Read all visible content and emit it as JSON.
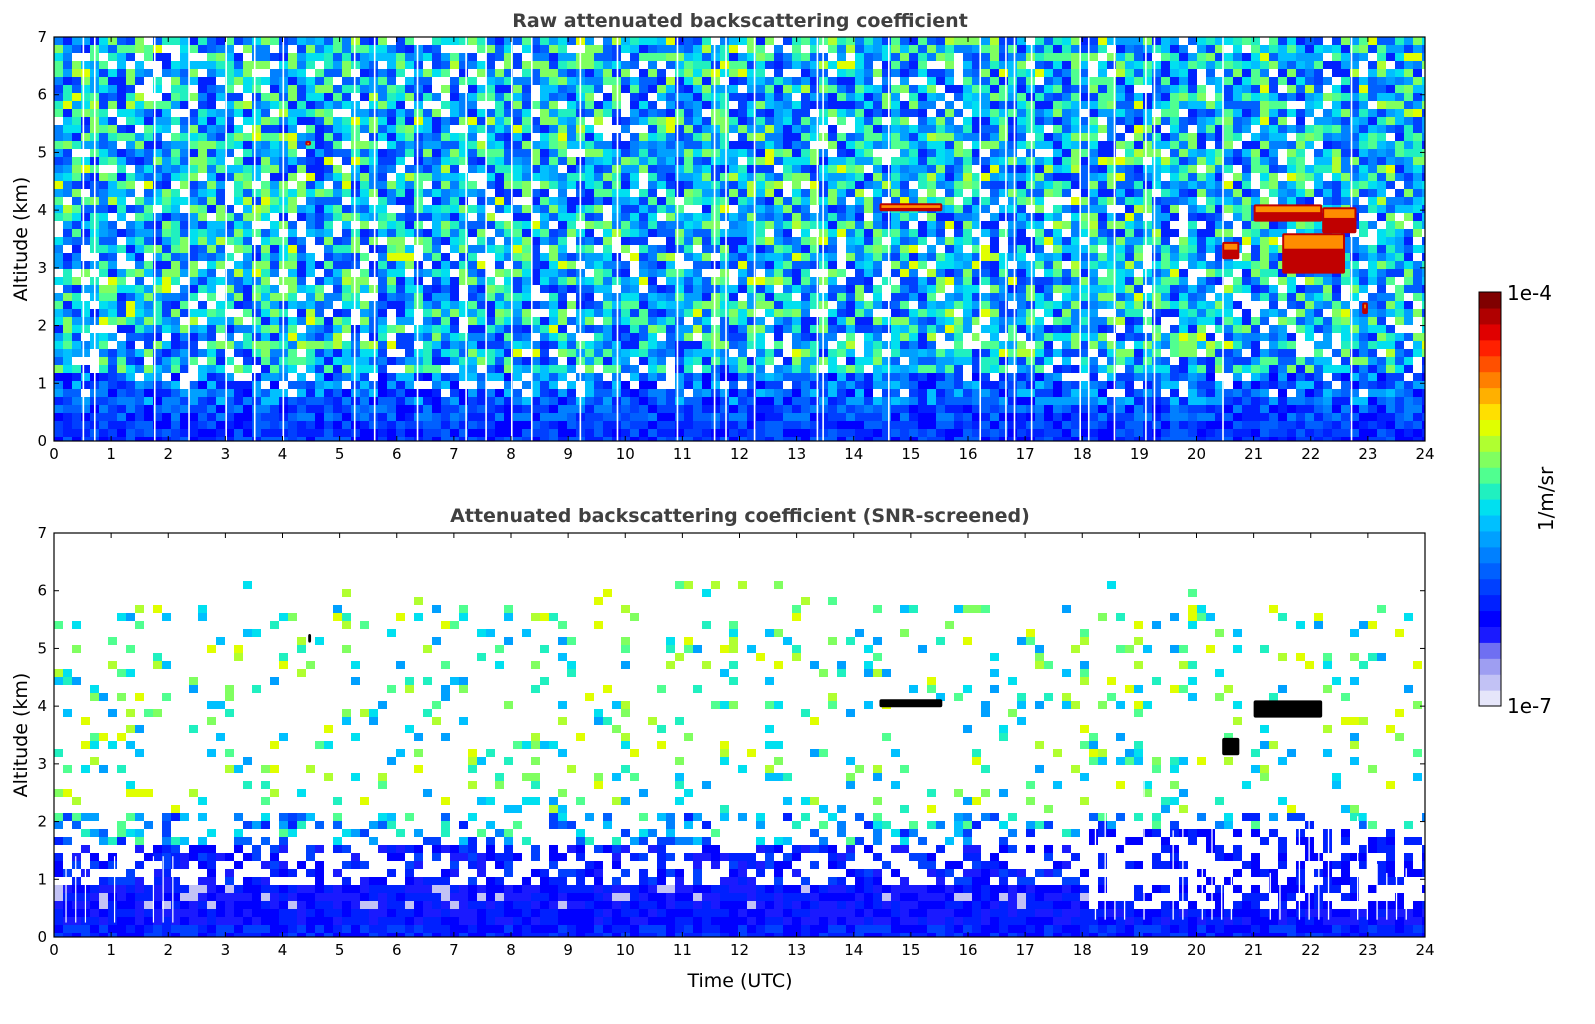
{
  "chart_data": [
    {
      "type": "heatmap",
      "title": "Raw attenuated backscattering coefficient",
      "xlabel": "",
      "ylabel": "Altitude (km)",
      "xlim": [
        0,
        24
      ],
      "ylim": [
        0,
        7
      ],
      "xticks": [
        "0",
        "1",
        "2",
        "3",
        "4",
        "5",
        "6",
        "7",
        "8",
        "9",
        "10",
        "11",
        "12",
        "13",
        "14",
        "15",
        "16",
        "17",
        "18",
        "19",
        "20",
        "21",
        "22",
        "23",
        "24"
      ],
      "yticks": [
        "0",
        "1",
        "2",
        "3",
        "4",
        "5",
        "6",
        "7"
      ],
      "features": {
        "near_surface_high_signal_top_km": 0.7,
        "noise_layer_km": [
          1.0,
          7.0
        ],
        "missing_profiles_utc": [
          0.5,
          0.7,
          1.75,
          2.35,
          3.0,
          3.5,
          4.0,
          5.25,
          5.6,
          6.35,
          7.2,
          7.55,
          8.0,
          8.35,
          9.2,
          9.85,
          10.9,
          11.55,
          11.75,
          12.25,
          13.35,
          13.45,
          14.6,
          16.2,
          16.65,
          16.8,
          17.1,
          17.95,
          18.1,
          18.55,
          19.1,
          19.25,
          20.45,
          22.7
        ],
        "cloud_patches": [
          {
            "time_utc": [
              21.0,
              22.2
            ],
            "alt_km": [
              3.8,
              4.1
            ],
            "level": "high"
          },
          {
            "time_utc": [
              22.2,
              22.8
            ],
            "alt_km": [
              3.6,
              4.05
            ],
            "level": "high"
          },
          {
            "time_utc": [
              20.45,
              20.75
            ],
            "alt_km": [
              3.15,
              3.45
            ],
            "level": "high"
          },
          {
            "time_utc": [
              21.5,
              22.6
            ],
            "alt_km": [
              2.9,
              3.6
            ],
            "level": "high"
          },
          {
            "time_utc": [
              14.45,
              15.55
            ],
            "alt_km": [
              3.98,
              4.12
            ],
            "level": "high"
          },
          {
            "time_utc": [
              4.4,
              4.5
            ],
            "alt_km": [
              5.12,
              5.2
            ],
            "level": "high"
          },
          {
            "time_utc": [
              22.9,
              23.0
            ],
            "alt_km": [
              2.2,
              2.4
            ],
            "level": "high"
          }
        ]
      }
    },
    {
      "type": "heatmap",
      "title": "Attenuated backscattering coefficient (SNR-screened)",
      "xlabel": "Time (UTC)",
      "ylabel": "Altitude (km)",
      "xlim": [
        0,
        24
      ],
      "ylim": [
        0,
        7
      ],
      "xticks": [
        "0",
        "1",
        "2",
        "3",
        "4",
        "5",
        "6",
        "7",
        "8",
        "9",
        "10",
        "11",
        "12",
        "13",
        "14",
        "15",
        "16",
        "17",
        "18",
        "19",
        "20",
        "21",
        "22",
        "23",
        "24"
      ],
      "yticks": [
        "0",
        "1",
        "2",
        "3",
        "4",
        "5",
        "6",
        "7"
      ],
      "features": {
        "boundary_layer_top_km": 1.0,
        "sparse_signal_region_km": [
          1.5,
          5.8
        ],
        "screened_profiles_after_utc": 18.0,
        "cloud_patches": [
          {
            "time_utc": [
              21.0,
              22.2
            ],
            "alt_km": [
              3.8,
              4.1
            ],
            "level": "saturated"
          },
          {
            "time_utc": [
              20.45,
              20.75
            ],
            "alt_km": [
              3.15,
              3.45
            ],
            "level": "saturated"
          },
          {
            "time_utc": [
              14.45,
              15.55
            ],
            "alt_km": [
              3.98,
              4.12
            ],
            "level": "saturated"
          },
          {
            "time_utc": [
              4.45,
              4.5
            ],
            "alt_km": [
              5.1,
              5.25
            ],
            "level": "saturated"
          }
        ]
      }
    }
  ],
  "colorbar": {
    "label": "1/m/sr",
    "max_label": "1e-4",
    "min_label": "1e-7",
    "colors": [
      "#e6e6fa",
      "#c2c2f5",
      "#9e9ef2",
      "#6f6ff2",
      "#1a1aff",
      "#0000ff",
      "#0020ff",
      "#0040ff",
      "#0060ff",
      "#0080ff",
      "#00a0ff",
      "#00c0ff",
      "#00e0f0",
      "#20f0c0",
      "#50ff90",
      "#80ff60",
      "#b0ff30",
      "#e0ff00",
      "#ffe000",
      "#ffb000",
      "#ff8000",
      "#ff5000",
      "#ff2000",
      "#e00000",
      "#b00000",
      "#800000"
    ]
  }
}
